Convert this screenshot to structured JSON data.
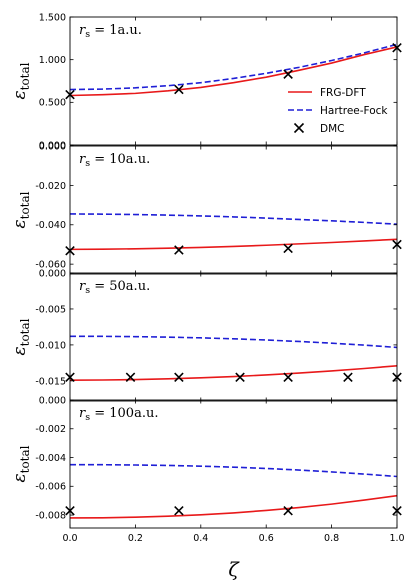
{
  "chart_data": [
    {
      "type": "line",
      "title": "rs = 1a.u.",
      "title_parts": {
        "sym": "r",
        "sub": "s",
        "rest": " = 1a.u."
      },
      "xlabel": "ζ",
      "ylabel": "ε",
      "ylabel_sub": "total",
      "xlim": [
        0,
        1
      ],
      "ylim": [
        0,
        1.5
      ],
      "x_ticks": [
        "0.0",
        "0.2",
        "0.4",
        "0.6",
        "0.8",
        "1.0"
      ],
      "y_ticks": [
        {
          "v": 0.0,
          "label": "0.000"
        },
        {
          "v": 0.5,
          "label": "0.500"
        },
        {
          "v": 1.0,
          "label": "1.000"
        },
        {
          "v": 1.5,
          "label": "1.500"
        }
      ],
      "series": [
        {
          "name": "FRG-DFT",
          "style": "solid",
          "color": "#e8191a",
          "x": [
            0,
            0.1,
            0.2,
            0.3,
            0.4,
            0.5,
            0.6,
            0.7,
            0.8,
            0.9,
            1.0
          ],
          "y": [
            0.58,
            0.59,
            0.605,
            0.635,
            0.675,
            0.73,
            0.795,
            0.875,
            0.96,
            1.06,
            1.15
          ]
        },
        {
          "name": "Hartree-Fock",
          "style": "dashed",
          "color": "#1f1fd6",
          "x": [
            0,
            0.1,
            0.2,
            0.3,
            0.4,
            0.5,
            0.6,
            0.7,
            0.8,
            0.9,
            1.0
          ],
          "y": [
            0.65,
            0.655,
            0.67,
            0.695,
            0.73,
            0.78,
            0.84,
            0.91,
            0.99,
            1.08,
            1.18
          ]
        },
        {
          "name": "DMC",
          "style": "marker-x",
          "color": "#000000",
          "x": [
            0.0,
            0.333,
            0.667,
            1.0
          ],
          "y": [
            0.59,
            0.65,
            0.83,
            1.14
          ]
        }
      ],
      "legend": {
        "placement": "right",
        "entries": [
          "FRG-DFT",
          "Hartree-Fock",
          "DMC"
        ]
      }
    },
    {
      "type": "line",
      "title": "rs = 10a.u.",
      "title_parts": {
        "sym": "r",
        "sub": "s",
        "rest": " = 10a.u."
      },
      "xlabel": "ζ",
      "ylabel": "ε",
      "ylabel_sub": "total",
      "xlim": [
        0,
        1
      ],
      "ylim": [
        -0.065,
        0.0
      ],
      "x_ticks": [
        "0.0",
        "0.2",
        "0.4",
        "0.6",
        "0.8",
        "1.0"
      ],
      "y_ticks": [
        {
          "v": 0.0,
          "label": "0.000"
        },
        {
          "v": -0.02,
          "label": "-0.020"
        },
        {
          "v": -0.04,
          "label": "-0.040"
        },
        {
          "v": -0.06,
          "label": "-0.060"
        }
      ],
      "series": [
        {
          "name": "FRG-DFT",
          "style": "solid",
          "color": "#e8191a",
          "x": [
            0,
            0.1,
            0.2,
            0.3,
            0.4,
            0.5,
            0.6,
            0.7,
            0.8,
            0.9,
            1.0
          ],
          "y": [
            -0.0525,
            -0.0524,
            -0.0522,
            -0.0519,
            -0.0515,
            -0.051,
            -0.0504,
            -0.0497,
            -0.049,
            -0.0482,
            -0.0474
          ]
        },
        {
          "name": "Hartree-Fock",
          "style": "dashed",
          "color": "#1f1fd6",
          "x": [
            0,
            0.1,
            0.2,
            0.3,
            0.4,
            0.5,
            0.6,
            0.7,
            0.8,
            0.9,
            1.0
          ],
          "y": [
            -0.0345,
            -0.0346,
            -0.0348,
            -0.0351,
            -0.0355,
            -0.036,
            -0.0366,
            -0.0373,
            -0.038,
            -0.0388,
            -0.0397
          ]
        },
        {
          "name": "DMC",
          "style": "marker-x",
          "color": "#000000",
          "x": [
            0.0,
            0.333,
            0.667,
            1.0
          ],
          "y": [
            -0.0532,
            -0.0528,
            -0.052,
            -0.05
          ]
        }
      ]
    },
    {
      "type": "line",
      "title": "rs = 50a.u.",
      "title_parts": {
        "sym": "r",
        "sub": "s",
        "rest": " = 50a.u."
      },
      "xlabel": "ζ",
      "ylabel": "ε",
      "ylabel_sub": "total",
      "xlim": [
        0,
        1
      ],
      "ylim": [
        -0.0178,
        0.0
      ],
      "x_ticks": [
        "0.0",
        "0.2",
        "0.4",
        "0.6",
        "0.8",
        "1.0"
      ],
      "y_ticks": [
        {
          "v": 0.0,
          "label": "0.000"
        },
        {
          "v": -0.005,
          "label": "-0.005"
        },
        {
          "v": -0.01,
          "label": "-0.010"
        },
        {
          "v": -0.015,
          "label": "-0.015"
        }
      ],
      "series": [
        {
          "name": "FRG-DFT",
          "style": "solid",
          "color": "#e8191a",
          "x": [
            0,
            0.1,
            0.2,
            0.3,
            0.4,
            0.5,
            0.6,
            0.7,
            0.8,
            0.9,
            1.0
          ],
          "y": [
            -0.0149,
            -0.01488,
            -0.01482,
            -0.01472,
            -0.01458,
            -0.0144,
            -0.01418,
            -0.01392,
            -0.01362,
            -0.01328,
            -0.0129
          ]
        },
        {
          "name": "Hartree-Fock",
          "style": "dashed",
          "color": "#1f1fd6",
          "x": [
            0,
            0.1,
            0.2,
            0.3,
            0.4,
            0.5,
            0.6,
            0.7,
            0.8,
            0.9,
            1.0
          ],
          "y": [
            -0.0088,
            -0.00881,
            -0.00885,
            -0.00892,
            -0.00902,
            -0.00915,
            -0.00932,
            -0.00952,
            -0.00976,
            -0.01003,
            -0.01035
          ]
        },
        {
          "name": "DMC",
          "style": "marker-x",
          "color": "#000000",
          "x": [
            0.0,
            0.185,
            0.333,
            0.52,
            0.667,
            0.85,
            1.0
          ],
          "y": [
            -0.0145,
            -0.0145,
            -0.0145,
            -0.0145,
            -0.0145,
            -0.0145,
            -0.0145
          ]
        }
      ]
    },
    {
      "type": "line",
      "title": "rs = 100a.u.",
      "title_parts": {
        "sym": "r",
        "sub": "s",
        "rest": " = 100a.u."
      },
      "xlabel": "ζ",
      "ylabel": "ε",
      "ylabel_sub": "total",
      "xlim": [
        0,
        1
      ],
      "ylim": [
        -0.0089,
        0.0
      ],
      "x_ticks": [
        "0.0",
        "0.2",
        "0.4",
        "0.6",
        "0.8",
        "1.0"
      ],
      "y_ticks": [
        {
          "v": 0.0,
          "label": "0.000"
        },
        {
          "v": -0.002,
          "label": "-0.002"
        },
        {
          "v": -0.004,
          "label": "-0.004"
        },
        {
          "v": -0.006,
          "label": "-0.006"
        },
        {
          "v": -0.008,
          "label": "-0.008"
        }
      ],
      "series": [
        {
          "name": "FRG-DFT",
          "style": "solid",
          "color": "#e8191a",
          "x": [
            0,
            0.1,
            0.2,
            0.3,
            0.4,
            0.5,
            0.6,
            0.7,
            0.8,
            0.9,
            1.0
          ],
          "y": [
            -0.0082,
            -0.00819,
            -0.00815,
            -0.00808,
            -0.00798,
            -0.00785,
            -0.00768,
            -0.00748,
            -0.00724,
            -0.00696,
            -0.00665
          ]
        },
        {
          "name": "Hartree-Fock",
          "style": "dashed",
          "color": "#1f1fd6",
          "x": [
            0,
            0.1,
            0.2,
            0.3,
            0.4,
            0.5,
            0.6,
            0.7,
            0.8,
            0.9,
            1.0
          ],
          "y": [
            -0.0045,
            -0.0045,
            -0.00452,
            -0.00455,
            -0.0046,
            -0.00467,
            -0.00476,
            -0.00487,
            -0.005,
            -0.00515,
            -0.00532
          ]
        },
        {
          "name": "DMC",
          "style": "marker-x",
          "color": "#000000",
          "x": [
            0.0,
            0.333,
            0.667,
            1.0
          ],
          "y": [
            -0.0077,
            -0.0077,
            -0.0077,
            -0.0077
          ]
        }
      ]
    }
  ]
}
